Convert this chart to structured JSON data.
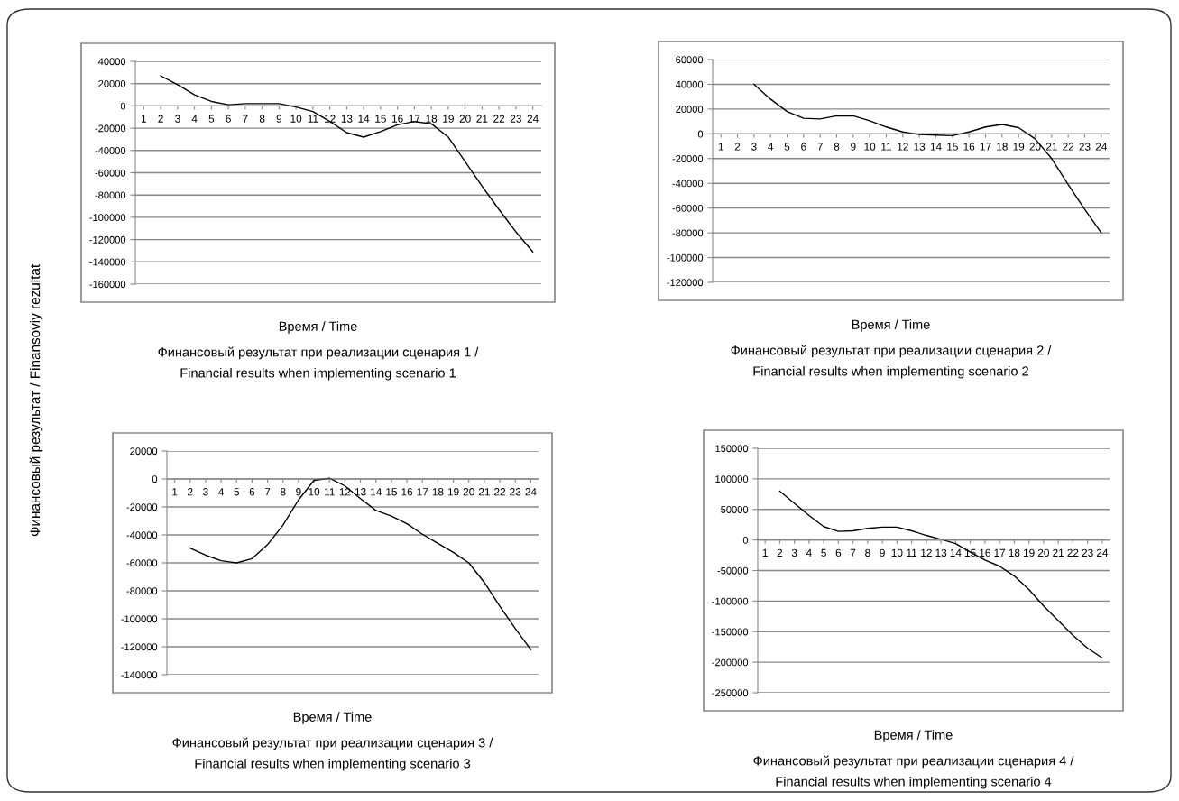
{
  "chart_data": [
    {
      "type": "line",
      "title": "Финансовый результат при реализации сценария 1 /\nFinancial results when implementing scenario 1",
      "xlabel": "Время / Time",
      "ylabel": "Финансовый результат / Finansoviy rezultat",
      "categories": [
        "1",
        "2",
        "3",
        "4",
        "5",
        "6",
        "7",
        "8",
        "9",
        "10",
        "11",
        "12",
        "13",
        "14",
        "15",
        "16",
        "17",
        "18",
        "19",
        "20",
        "21",
        "22",
        "23",
        "24"
      ],
      "series": [
        {
          "color": "#000000",
          "values": [
            null,
            27000,
            19000,
            10000,
            4000,
            1000,
            2000,
            2000,
            2000,
            -1000,
            -5000,
            -14000,
            -24000,
            -28000,
            -23000,
            -17000,
            -14000,
            -16000,
            -28000,
            -50000,
            -72000,
            -93000,
            -113000,
            -131000
          ]
        }
      ],
      "ylim": [
        -160000,
        40000
      ],
      "yticks": [
        -160000,
        -140000,
        -120000,
        -100000,
        -80000,
        -60000,
        -40000,
        -20000,
        0,
        20000,
        40000
      ],
      "grid": "y",
      "marker": "none",
      "line_style": "solid"
    },
    {
      "type": "line",
      "title": "Финансовый результат при реализации сценария 2 /\nFinancial results when implementing scenario 2",
      "xlabel": "Время / Time",
      "categories": [
        "1",
        "2",
        "3",
        "4",
        "5",
        "6",
        "7",
        "8",
        "9",
        "10",
        "11",
        "12",
        "13",
        "14",
        "15",
        "16",
        "17",
        "18",
        "19",
        "20",
        "21",
        "22",
        "23",
        "24"
      ],
      "series": [
        {
          "color": "#000000",
          "values": [
            null,
            null,
            40000,
            28000,
            18000,
            12500,
            12000,
            14500,
            14500,
            10500,
            5500,
            1500,
            -500,
            -1000,
            -1500,
            1500,
            5500,
            7500,
            5000,
            -4000,
            -20000,
            -41000,
            -61000,
            -80000
          ]
        }
      ],
      "ylim": [
        -120000,
        60000
      ],
      "yticks": [
        -120000,
        -100000,
        -80000,
        -60000,
        -40000,
        -20000,
        0,
        20000,
        40000,
        60000
      ],
      "grid": "y",
      "marker": "none",
      "line_style": "solid"
    },
    {
      "type": "line",
      "title": "Финансовый результат при реализации сценария 3 /\nFinancial results when implementing scenario 3",
      "xlabel": "Время / Time",
      "categories": [
        "1",
        "2",
        "3",
        "4",
        "5",
        "6",
        "7",
        "8",
        "9",
        "10",
        "11",
        "12",
        "13",
        "14",
        "15",
        "16",
        "17",
        "18",
        "19",
        "20",
        "21",
        "22",
        "23",
        "24"
      ],
      "series": [
        {
          "color": "#000000",
          "values": [
            null,
            -49500,
            -54500,
            -58500,
            -60000,
            -57000,
            -47000,
            -33000,
            -15000,
            -1000,
            500,
            -5000,
            -14000,
            -22500,
            -26500,
            -32000,
            -39500,
            -46000,
            -52500,
            -60000,
            -74000,
            -91000,
            -107000,
            -122000
          ]
        }
      ],
      "ylim": [
        -140000,
        20000
      ],
      "yticks": [
        -140000,
        -120000,
        -100000,
        -80000,
        -60000,
        -40000,
        -20000,
        0,
        20000
      ],
      "grid": "y",
      "marker": "none",
      "line_style": "solid"
    },
    {
      "type": "line",
      "title": "Финансовый результат при реализации сценария 4 /\nFinancial results when implementing scenario 4",
      "xlabel": "Время / Time",
      "categories": [
        "1",
        "2",
        "3",
        "4",
        "5",
        "6",
        "7",
        "8",
        "9",
        "10",
        "11",
        "12",
        "13",
        "14",
        "15",
        "16",
        "17",
        "18",
        "19",
        "20",
        "21",
        "22",
        "23",
        "24"
      ],
      "series": [
        {
          "color": "#000000",
          "values": [
            null,
            80000,
            60000,
            40000,
            22000,
            14000,
            15000,
            19000,
            21000,
            21000,
            15000,
            7500,
            1000,
            -6000,
            -20000,
            -33000,
            -43000,
            -59000,
            -81000,
            -108000,
            -132000,
            -156000,
            -177000,
            -193000
          ]
        }
      ],
      "ylim": [
        -250000,
        150000
      ],
      "yticks": [
        -250000,
        -200000,
        -150000,
        -100000,
        -50000,
        0,
        50000,
        100000,
        150000
      ],
      "grid": "y",
      "marker": "none",
      "line_style": "solid"
    }
  ]
}
